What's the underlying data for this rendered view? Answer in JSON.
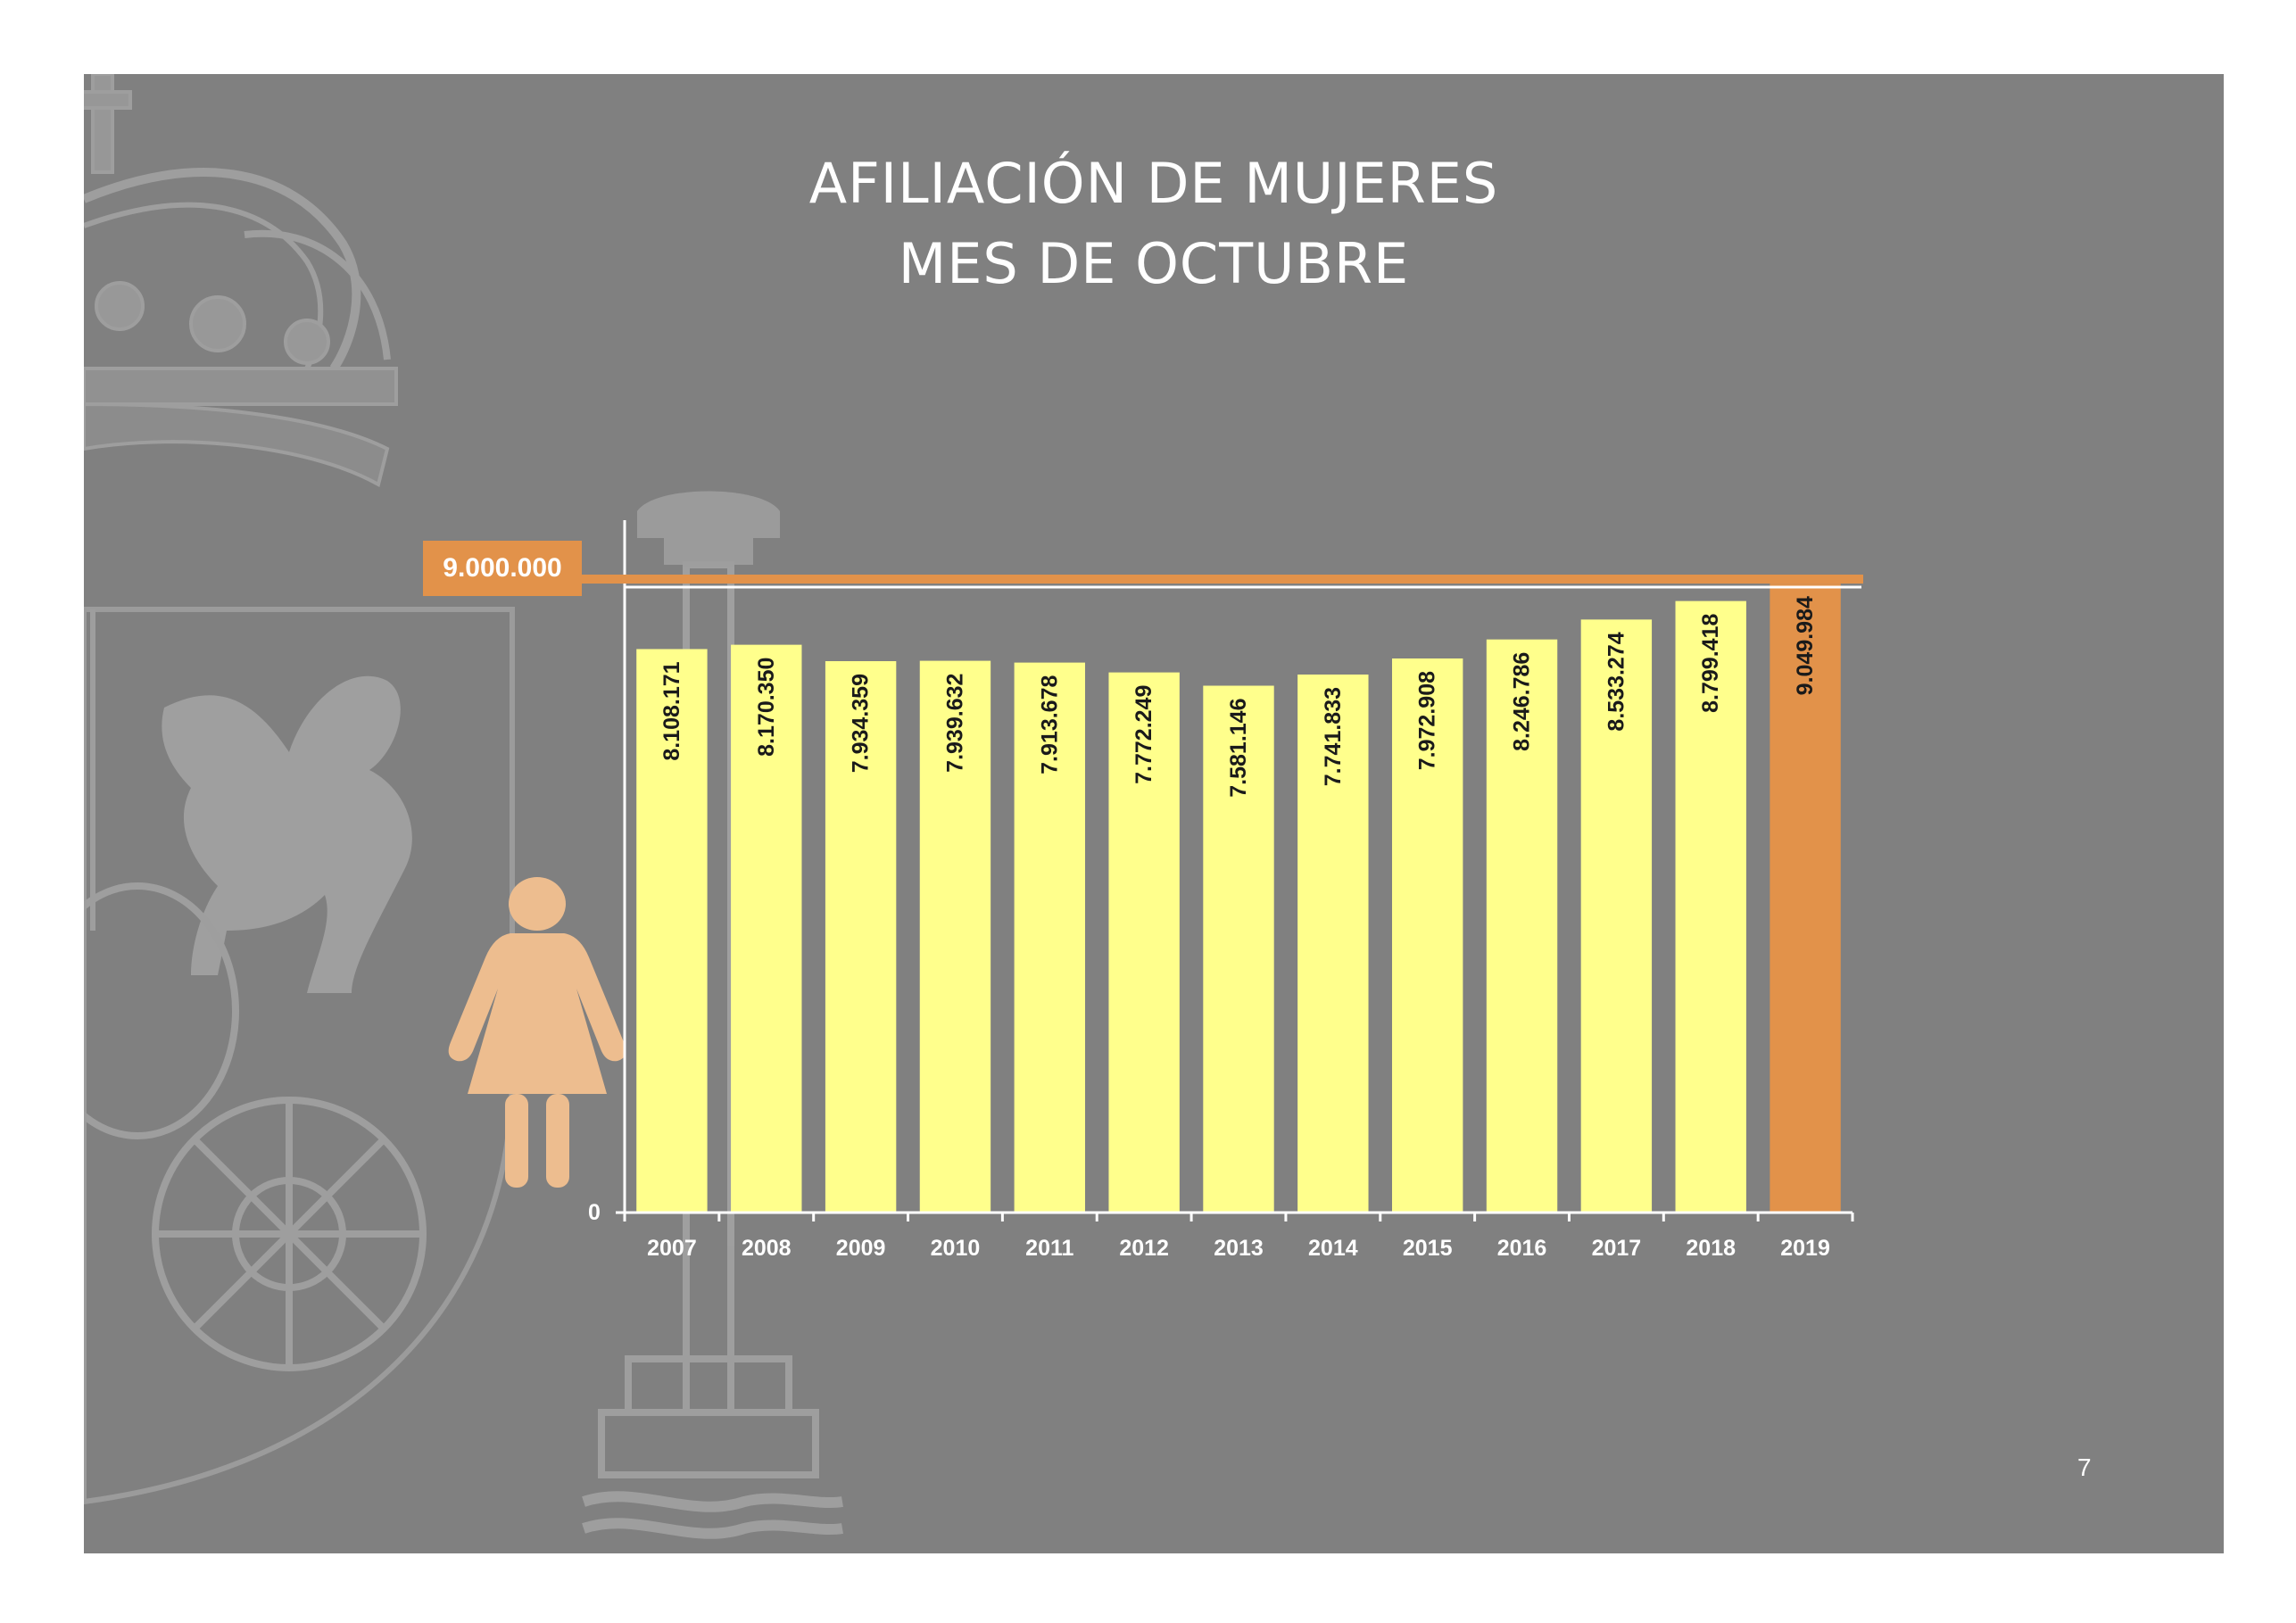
{
  "title_line1": "AFILIACIÓN DE MUJERES",
  "title_line2": "MES DE OCTUBRE",
  "page_number": "7",
  "reference_label": "9.000.000",
  "colors": {
    "background": "#808080",
    "bar": "#ffff8c",
    "highlight_bar": "#e2924a",
    "reference_line": "#e2924a",
    "figure": "#edbd8f"
  },
  "icons": [
    "woman-icon",
    "coat-of-arms-watermark"
  ],
  "chart_data": {
    "type": "bar",
    "categories": [
      "2007",
      "2008",
      "2009",
      "2010",
      "2011",
      "2012",
      "2013",
      "2014",
      "2015",
      "2016",
      "2017",
      "2018",
      "2019"
    ],
    "values": [
      8108171,
      8170350,
      7934359,
      7939632,
      7913678,
      7772249,
      7581146,
      7741833,
      7972908,
      8246786,
      8533274,
      8799418,
      9049984
    ],
    "data_labels": [
      "8.108.171",
      "8.170.350",
      "7.934.359",
      "7.939.632",
      "7.913.678",
      "7.772.249",
      "7.581.146",
      "7.741.833",
      "7.972.908",
      "8.246.786",
      "8.533.274",
      "8.799.418",
      "9.049.984"
    ],
    "highlighted_category": "2019",
    "reference_line": 9000000,
    "ytick_labels": [
      "0"
    ],
    "ylim": [
      0,
      9000000
    ],
    "grid": false,
    "legend": "none"
  }
}
